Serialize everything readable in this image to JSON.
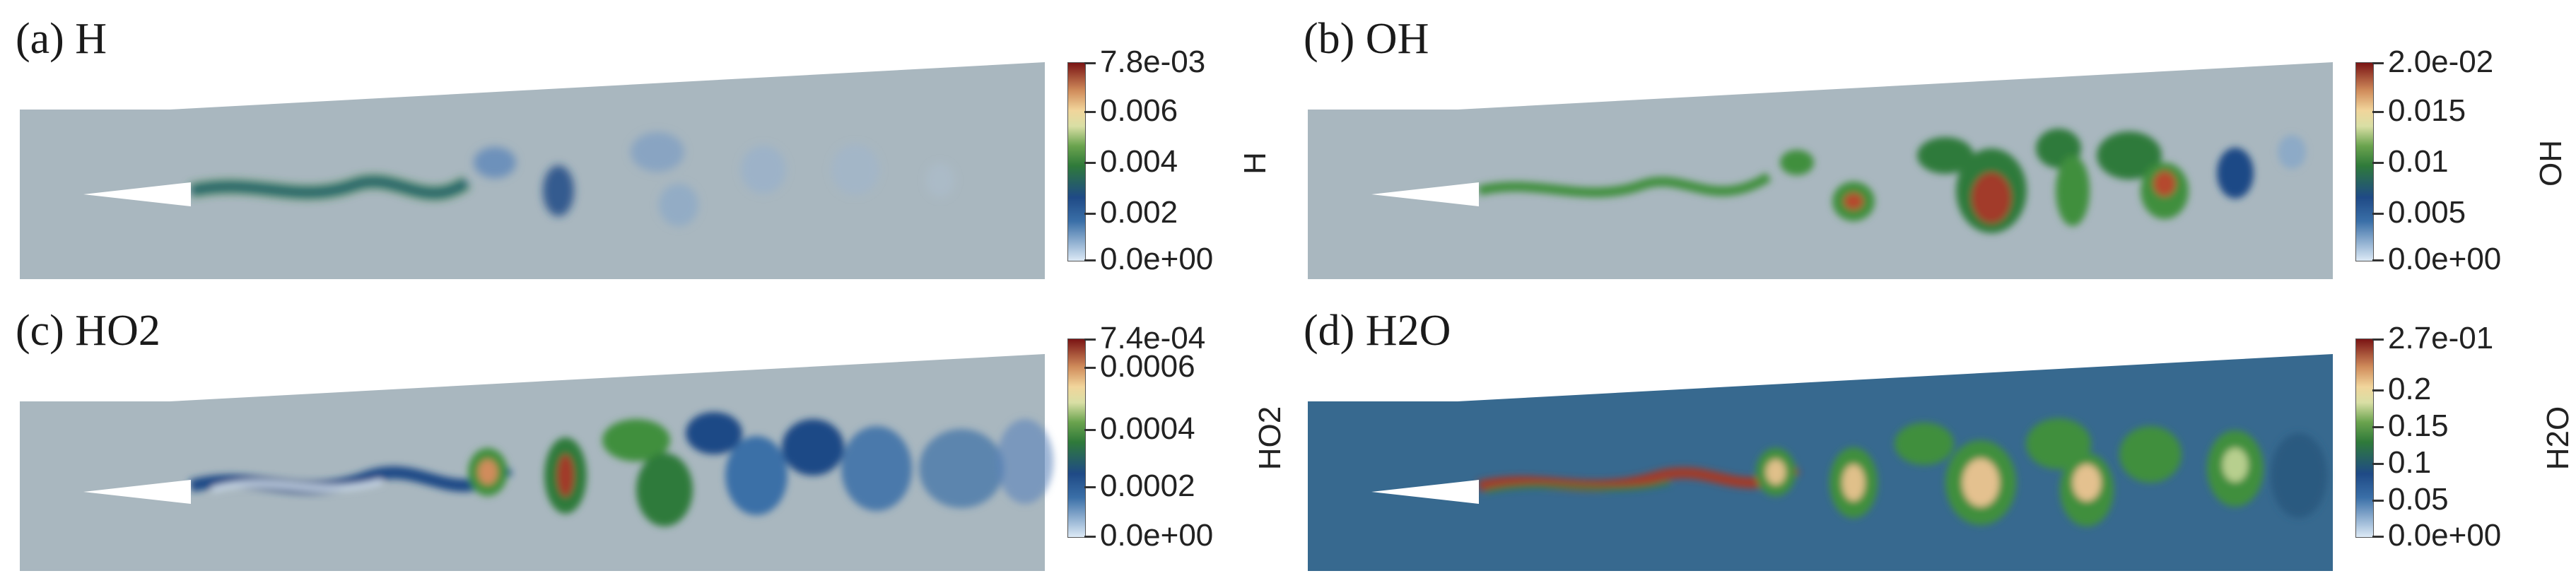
{
  "colors": {
    "background_domain_light": "#a9b7bf",
    "background_domain_h2o": "#37698f",
    "colormap": [
      "#dce9f5",
      "#3a6fa7",
      "#1f4a86",
      "#2f7a3a",
      "#3f8f3d",
      "#b7cf8e",
      "#f1d59b",
      "#d08c5b",
      "#a23b2a",
      "#7a1414"
    ]
  },
  "panels": [
    {
      "label": "(a) H",
      "variable": "H",
      "colorbar_ticks": [
        "7.8e-03",
        "0.006",
        "0.004",
        "0.002",
        "0.0e+00"
      ]
    },
    {
      "label": "(b) OH",
      "variable": "OH",
      "colorbar_ticks": [
        "2.0e-02",
        "0.015",
        "0.01",
        "0.005",
        "0.0e+00"
      ]
    },
    {
      "label": "(c) HO2",
      "variable": "HO2",
      "colorbar_ticks": [
        "7.4e-04",
        "0.0006",
        "0.0004",
        "0.0002",
        "0.0e+00"
      ]
    },
    {
      "label": "(d) H2O",
      "variable": "H2O",
      "colorbar_ticks": [
        "2.7e-01",
        "0.2",
        "0.15",
        "0.1",
        "0.05",
        "0.0e+00"
      ]
    }
  ]
}
